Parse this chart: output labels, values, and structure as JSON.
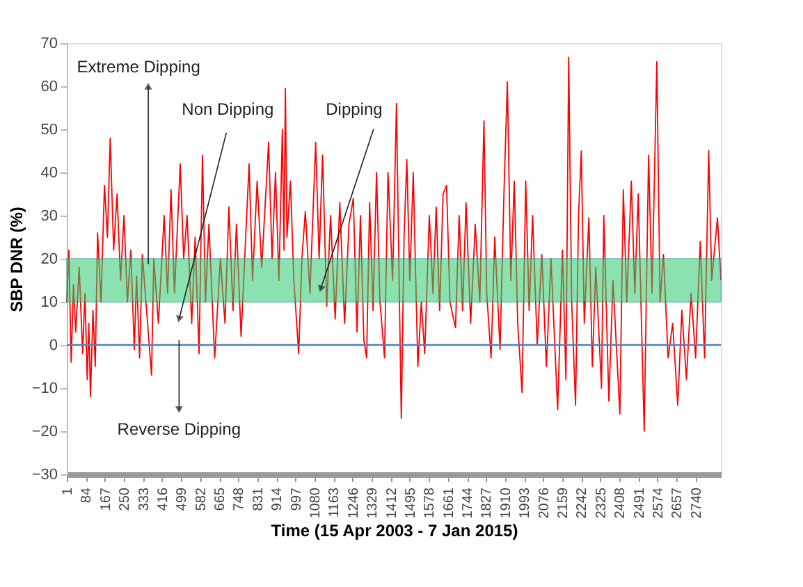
{
  "chart_data": {
    "type": "line",
    "xlabel": "Time (15 Apr 2003 -  7 Jan 2015)",
    "ylabel": "SBP DNR (%)",
    "xlim": [
      1,
      2850
    ],
    "xticks": [
      1,
      84,
      167,
      250,
      333,
      416,
      499,
      582,
      665,
      748,
      831,
      914,
      997,
      1080,
      1163,
      1246,
      1329,
      1412,
      1495,
      1578,
      1661,
      1744,
      1827,
      1910,
      1993,
      2076,
      2159,
      2242,
      2325,
      2408,
      2491,
      2574,
      2657,
      2740
    ],
    "ylim": [
      -30,
      70
    ],
    "yticks": [
      -30,
      -20,
      -10,
      0,
      10,
      20,
      30,
      40,
      50,
      60,
      70
    ],
    "grid": false,
    "marker": "none",
    "line_style": "solid",
    "series": [
      {
        "color": "#ff0000",
        "x": [
          1,
          10,
          20,
          30,
          40,
          55,
          70,
          80,
          90,
          97,
          104,
          115,
          125,
          135,
          150,
          165,
          178,
          190,
          205,
          220,
          235,
          250,
          265,
          280,
          295,
          305,
          318,
          330,
          370,
          380,
          400,
          425,
          440,
          455,
          470,
          495,
          510,
          525,
          545,
          560,
          577,
          592,
          605,
          620,
          645,
          670,
          690,
          707,
          725,
          740,
          760,
          795,
          810,
          830,
          850,
          880,
          895,
          910,
          925,
          940,
          947,
          953,
          960,
          975,
          990,
          1011,
          1025,
          1040,
          1060,
          1085,
          1100,
          1115,
          1133,
          1150,
          1170,
          1190,
          1211,
          1230,
          1249,
          1265,
          1280,
          1295,
          1307,
          1320,
          1335,
          1350,
          1365,
          1385,
          1400,
          1420,
          1437,
          1447,
          1458,
          1470,
          1482,
          1495,
          1510,
          1530,
          1545,
          1560,
          1580,
          1596,
          1610,
          1625,
          1640,
          1655,
          1670,
          1694,
          1710,
          1725,
          1740,
          1760,
          1780,
          1800,
          1818,
          1830,
          1849,
          1865,
          1888,
          1905,
          1920,
          1935,
          1950,
          1965,
          1984,
          2000,
          2015,
          2030,
          2050,
          2070,
          2090,
          2110,
          2139,
          2160,
          2175,
          2187,
          2200,
          2217,
          2230,
          2242,
          2255,
          2275,
          2290,
          2305,
          2330,
          2340,
          2362,
          2380,
          2410,
          2425,
          2440,
          2460,
          2475,
          2490,
          2516,
          2535,
          2550,
          2571,
          2585,
          2600,
          2620,
          2640,
          2662,
          2680,
          2700,
          2720,
          2740,
          2760,
          2779,
          2797,
          2810,
          2835,
          2850
        ],
        "values": [
          10,
          22,
          -4,
          14,
          3,
          18,
          -2,
          12,
          -8,
          5,
          -12,
          8,
          -5,
          26,
          10,
          37,
          25,
          48,
          22,
          35,
          15,
          30,
          10,
          22,
          -1,
          16,
          -3,
          21,
          -7,
          20,
          5,
          30,
          12,
          36,
          12,
          42,
          20,
          30,
          5,
          25,
          -2,
          44,
          10,
          28,
          -3,
          20,
          5,
          32,
          8,
          28,
          2,
          42,
          15,
          38,
          18,
          47,
          20,
          40,
          15,
          50,
          22,
          59.5,
          25,
          38,
          15,
          -2,
          20,
          31,
          12,
          47,
          20,
          44,
          9,
          30,
          6,
          33,
          5,
          28,
          34,
          3,
          30,
          1,
          -3,
          33,
          8,
          40,
          10,
          -3,
          40,
          15,
          56,
          20,
          -17,
          25,
          43,
          15,
          40,
          -5,
          10,
          -2,
          30,
          12,
          32,
          8,
          35,
          37,
          10,
          4,
          30,
          8,
          33,
          5,
          28,
          10,
          52,
          12,
          -3,
          25,
          -1,
          35,
          61,
          15,
          38,
          5,
          -11,
          38,
          8,
          30,
          0,
          21,
          -5,
          20,
          -15,
          22,
          -8,
          66.7,
          10,
          -14,
          30,
          45,
          5,
          29.5,
          -5,
          18,
          -10,
          30,
          -13,
          15,
          -16,
          36,
          10,
          38,
          12,
          35,
          -20,
          44,
          12,
          65.7,
          10,
          21,
          -3,
          5,
          -14,
          8,
          -8,
          12,
          -3,
          24,
          -3,
          45,
          15,
          29.5,
          15
        ]
      }
    ],
    "bands": [
      {
        "axis": "y",
        "from": 10,
        "to": 20,
        "color": "#2ecc71"
      }
    ],
    "ref_lines": [
      {
        "axis": "y",
        "value": 0,
        "color": "#4f81bd",
        "line_style": "solid"
      }
    ],
    "annotations": [
      {
        "text": "Extreme Dipping",
        "x": 356,
        "y": 60
      },
      {
        "text": "Non Dipping",
        "x": 490,
        "y": 6
      },
      {
        "text": "Dipping",
        "x": 1107,
        "y": 13
      },
      {
        "text": "Reverse Dipping",
        "x": 490,
        "y": -15
      }
    ]
  }
}
